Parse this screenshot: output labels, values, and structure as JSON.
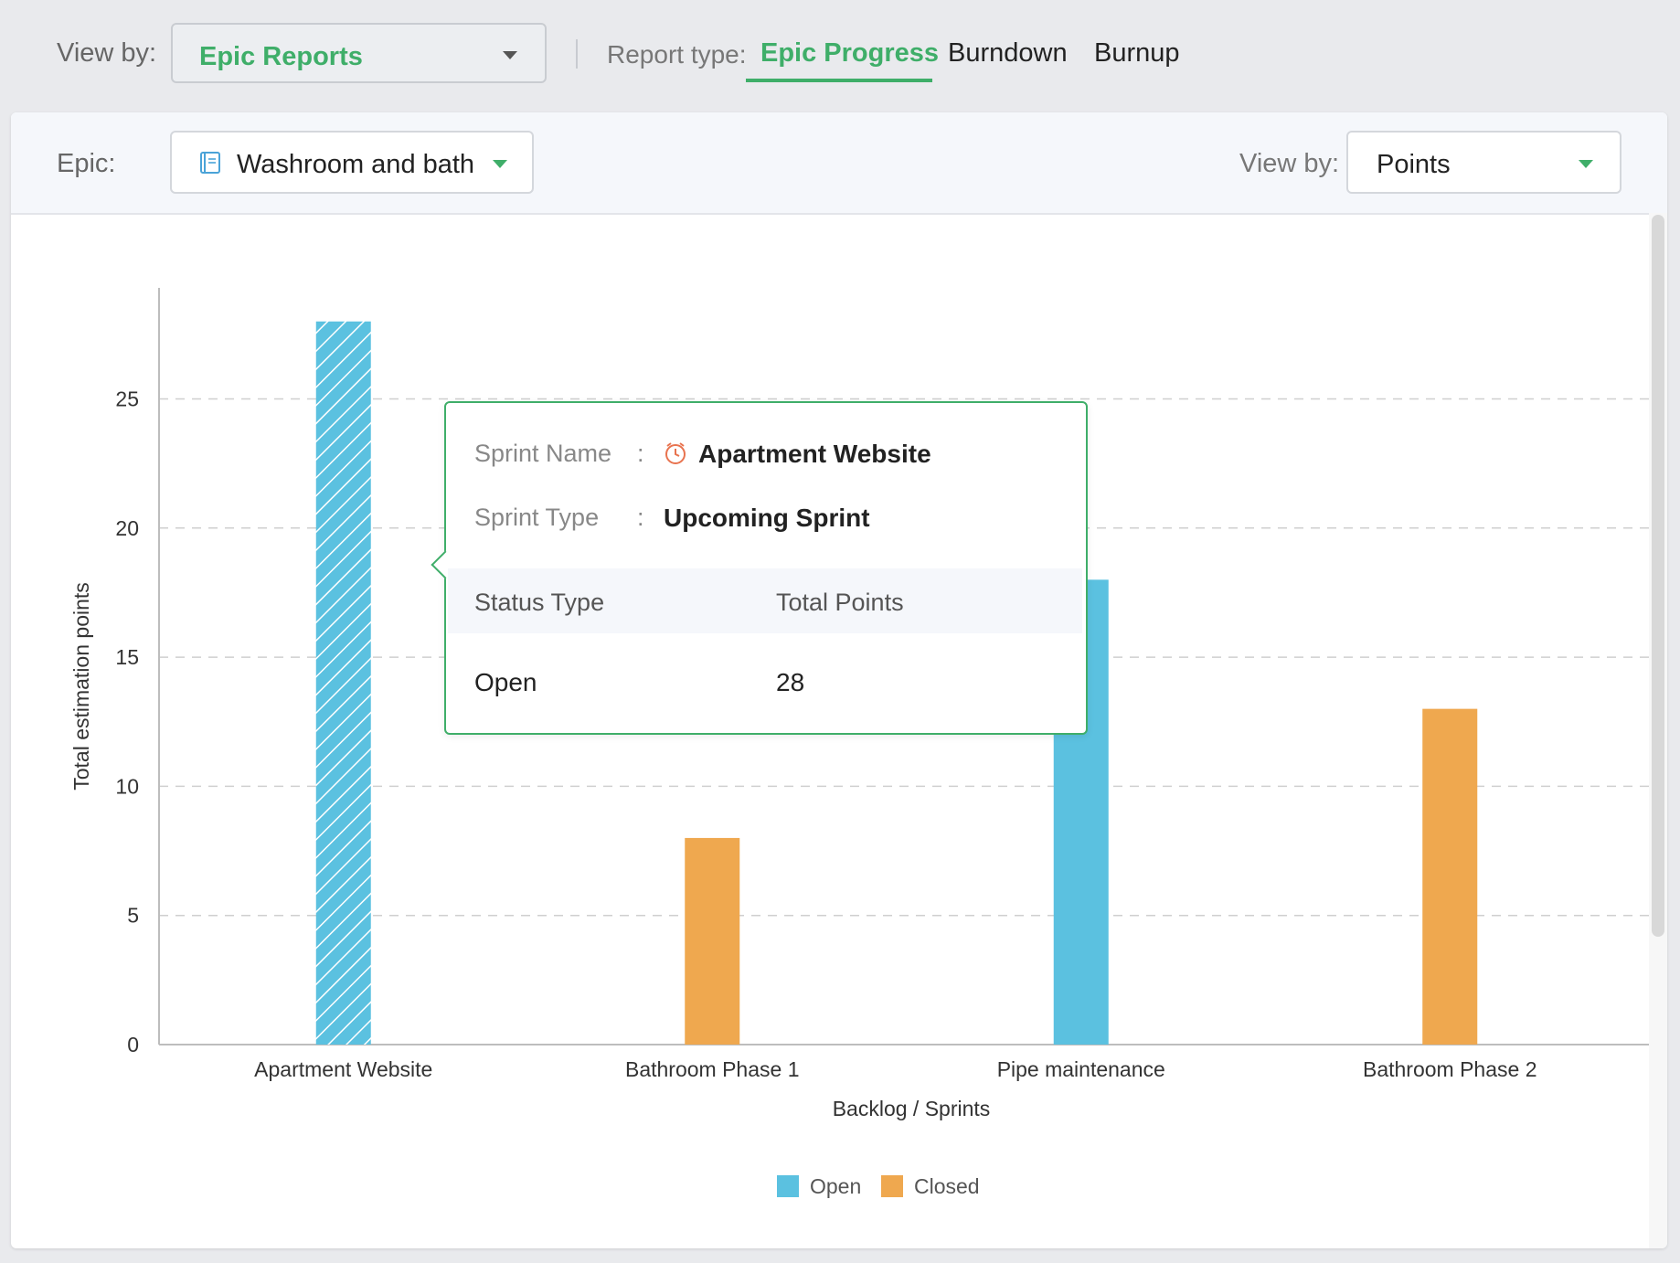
{
  "toolbar": {
    "view_by_label": "View by:",
    "view_by_value": "Epic Reports",
    "report_type_label": "Report type:",
    "tabs": [
      {
        "label": "Epic Progress",
        "active": true
      },
      {
        "label": "Burndown",
        "active": false
      },
      {
        "label": "Burnup",
        "active": false
      }
    ]
  },
  "filters": {
    "epic_label": "Epic:",
    "epic_value": "Washroom and bath",
    "epic_icon": "book-icon",
    "view_by_label": "View by:",
    "view_by_value": "Points"
  },
  "tooltip": {
    "sprint_name_label": "Sprint Name",
    "sprint_name_value": "Apartment Website",
    "sprint_icon": "clock-icon",
    "sprint_type_label": "Sprint Type",
    "sprint_type_value": "Upcoming Sprint",
    "colon": ":",
    "col_status": "Status Type",
    "col_points": "Total Points",
    "row_status": "Open",
    "row_points": "28"
  },
  "colors": {
    "accent": "#3fae69",
    "open": "#5bc1e0",
    "closed": "#efa84f"
  },
  "chart_data": {
    "type": "bar",
    "categories": [
      "Apartment Website",
      "Bathroom Phase 1",
      "Pipe maintenance",
      "Bathroom Phase 2"
    ],
    "values": [
      28,
      8,
      18,
      13
    ],
    "statuses": [
      "Open",
      "Closed",
      "Open",
      "Closed"
    ],
    "hatched": [
      true,
      false,
      false,
      false
    ],
    "xlabel": "Backlog / Sprints",
    "ylabel": "Total estimation points",
    "ylim": [
      0,
      29.3
    ],
    "yticks": [
      0,
      5,
      10,
      15,
      20,
      25
    ],
    "grid": true,
    "legend": [
      {
        "name": "Open",
        "color": "#5bc1e0"
      },
      {
        "name": "Closed",
        "color": "#efa84f"
      }
    ],
    "legend_position": "bottom-center"
  }
}
